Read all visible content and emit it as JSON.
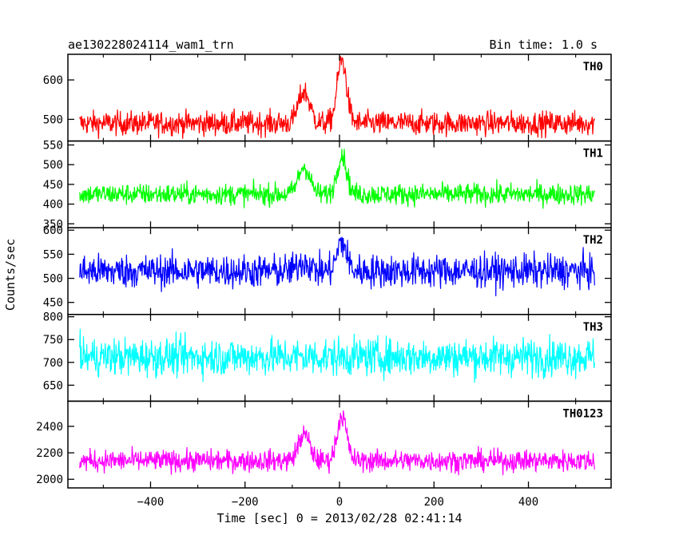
{
  "header": {
    "title": "ae130228024114_wam1_trn",
    "bin_time": "Bin time: 1.0 s"
  },
  "axes": {
    "ylabel": "Counts/sec",
    "xlabel": "Time [sec] 0 = 2013/02/28 02:41:14"
  },
  "chart_data": {
    "type": "line",
    "x_range": [
      -550,
      540
    ],
    "xlim": [
      -575,
      575
    ],
    "x_ticks": [
      -400,
      -200,
      0,
      200,
      400
    ],
    "x_tick_labels": [
      "−400",
      "−200",
      "0",
      "200",
      "400"
    ],
    "panels": [
      {
        "name": "TH0",
        "color": "#ff0000",
        "ylim": [
          445,
          665
        ],
        "y_ticks": [
          500,
          600
        ],
        "y_tick_labels": [
          "500",
          "600"
        ],
        "baseline": 490,
        "noise": 28,
        "peaks": [
          {
            "t": -75,
            "amp": 80,
            "width": 12
          },
          {
            "t": 5,
            "amp": 160,
            "width": 10
          }
        ]
      },
      {
        "name": "TH1",
        "color": "#00ff00",
        "ylim": [
          340,
          560
        ],
        "y_ticks": [
          350,
          400,
          450,
          500,
          550
        ],
        "y_tick_labels": [
          "350",
          "400",
          "450",
          "500",
          "550"
        ],
        "baseline": 425,
        "noise": 25,
        "peaks": [
          {
            "t": -75,
            "amp": 70,
            "width": 12
          },
          {
            "t": 5,
            "amp": 100,
            "width": 10
          }
        ]
      },
      {
        "name": "TH2",
        "color": "#0000ff",
        "ylim": [
          425,
          605
        ],
        "y_ticks": [
          450,
          500,
          550,
          600
        ],
        "y_tick_labels": [
          "450",
          "500",
          "550",
          "600"
        ],
        "baseline": 515,
        "noise": 32,
        "peaks": [
          {
            "t": -75,
            "amp": 20,
            "width": 12
          },
          {
            "t": 5,
            "amp": 60,
            "width": 10
          }
        ]
      },
      {
        "name": "TH3",
        "color": "#00ffff",
        "ylim": [
          615,
          805
        ],
        "y_ticks": [
          650,
          700,
          750,
          800
        ],
        "y_tick_labels": [
          "650",
          "700",
          "750",
          "800"
        ],
        "baseline": 712,
        "noise": 38,
        "peaks": []
      },
      {
        "name": "TH0123",
        "color": "#ff00ff",
        "ylim": [
          1935,
          2590
        ],
        "y_ticks": [
          2000,
          2200,
          2400
        ],
        "y_tick_labels": [
          "2000",
          "2200",
          "2400"
        ],
        "baseline": 2140,
        "noise": 75,
        "peaks": [
          {
            "t": -75,
            "amp": 200,
            "width": 12
          },
          {
            "t": 5,
            "amp": 340,
            "width": 10
          }
        ]
      }
    ]
  }
}
